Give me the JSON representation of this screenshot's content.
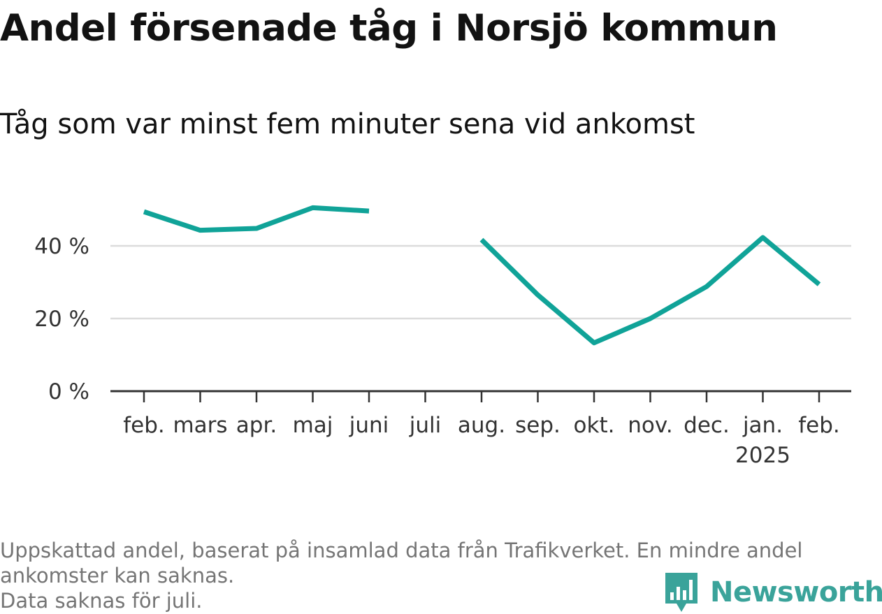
{
  "chart_data": {
    "type": "line",
    "title": "Andel försenade tåg i Norsjö kommun",
    "subtitle": "Tåg som var minst fem minuter sena vid ankomst",
    "xlabel": "",
    "ylabel": "",
    "categories": [
      "feb.",
      "mars",
      "apr.",
      "maj",
      "juni",
      "juli",
      "aug.",
      "sep.",
      "okt.",
      "nov.",
      "dec.",
      "jan.",
      "feb."
    ],
    "year_label": {
      "index": 11,
      "text": "2025"
    },
    "series": [
      {
        "name": "Andel försenade",
        "color": "#10a398",
        "values": [
          49.4,
          44.3,
          44.8,
          50.5,
          49.6,
          null,
          41.7,
          26.5,
          13.3,
          20.0,
          28.8,
          42.3,
          29.4
        ]
      }
    ],
    "ylim": [
      0,
      50
    ],
    "yticks": [
      0,
      20,
      40
    ],
    "ytick_labels": [
      "0 %",
      "20 %",
      "40 %"
    ],
    "grid": true,
    "colors": {
      "line": "#10a398",
      "grid": "#dcdcdc",
      "axis": "#333333"
    }
  },
  "footer": {
    "note_line1": "Uppskattad andel, baserat på insamlad data från Trafikverket. En mindre andel",
    "note_line2": "ankomster kan saknas.",
    "note_line3": "Data saknas för juli."
  },
  "brand": {
    "name": "Newsworthy",
    "color": "#3aa39a",
    "icon": "bar-chart-pin-icon"
  }
}
